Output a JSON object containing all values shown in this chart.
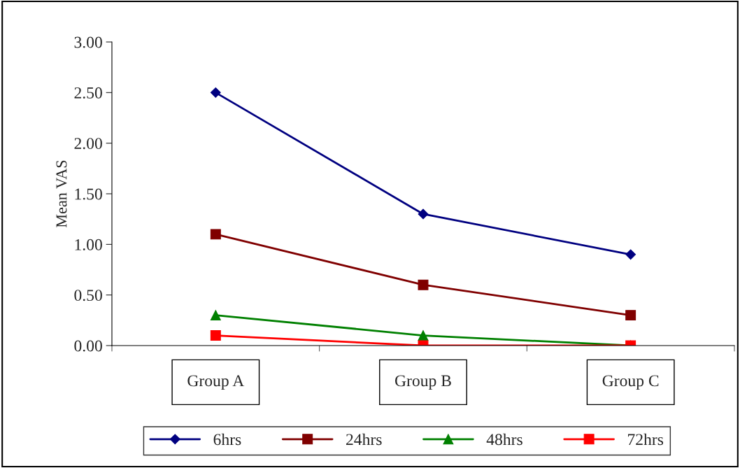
{
  "chart_data": {
    "type": "line",
    "ylabel": "Mean VAS",
    "categories": [
      "Group A",
      "Group B",
      "Group C"
    ],
    "series": [
      {
        "name": "6hrs",
        "color": "#000080",
        "marker": "diamond",
        "values": [
          2.5,
          1.3,
          0.9
        ]
      },
      {
        "name": "24hrs",
        "color": "#800000",
        "marker": "square",
        "values": [
          1.1,
          0.6,
          0.3
        ]
      },
      {
        "name": "48hrs",
        "color": "#008000",
        "marker": "triangle",
        "values": [
          0.3,
          0.1,
          0.0
        ]
      },
      {
        "name": "72hrs",
        "color": "#ff0000",
        "marker": "square",
        "values": [
          0.1,
          0.0,
          0.0
        ]
      }
    ],
    "ylim": [
      0,
      3
    ],
    "yticks": [
      {
        "value": 0,
        "label": "0.00"
      },
      {
        "value": 0.5,
        "label": "0.50"
      },
      {
        "value": 1,
        "label": "1.00"
      },
      {
        "value": 1.5,
        "label": "1.50"
      },
      {
        "value": 2,
        "label": "2.00"
      },
      {
        "value": 2.5,
        "label": "2.50"
      },
      {
        "value": 3,
        "label": "3.00"
      }
    ],
    "grid": false,
    "legend": "bottom",
    "line_style": "solid"
  }
}
